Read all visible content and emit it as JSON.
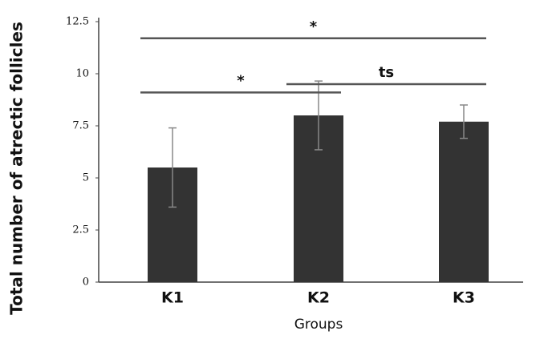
{
  "chart_data": {
    "type": "bar",
    "y_label": "Total number of atrectic follicles",
    "x_label": "Groups",
    "categories": [
      "K1",
      "K2",
      "K3"
    ],
    "values": [
      5.5,
      8.0,
      7.7
    ],
    "errors": [
      1.9,
      1.65,
      0.8
    ],
    "color": "#333333",
    "ylim": [
      0,
      12.5
    ],
    "yticks": [
      0,
      2.5,
      5,
      7.5,
      10,
      12.5
    ],
    "annotations": [
      {
        "text": "*",
        "from": "K1",
        "to": "K3",
        "y": 11.7
      },
      {
        "text": "*",
        "from": "K1",
        "to": "K2",
        "y": 9.1
      },
      {
        "text": "ts",
        "from": "K2",
        "to": "K3",
        "y": 9.5
      }
    ]
  }
}
